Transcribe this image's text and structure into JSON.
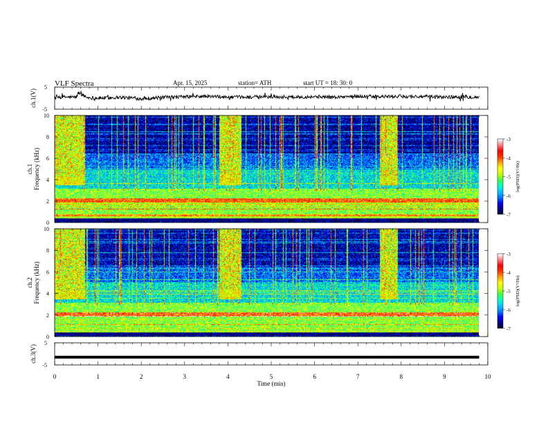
{
  "header": {
    "title": "VLF  Spectra",
    "date": "Apr. 15, 2025",
    "station": "station= ATH",
    "start_ut": "start  UT  =    18: 30: 0"
  },
  "chart_data": [
    {
      "type": "line",
      "id": "ch1_waveform",
      "ylabel": "ch.1(V)",
      "ylim": [
        -5,
        5
      ],
      "yticks": [
        "5",
        "-5"
      ],
      "xlim": [
        0,
        10
      ],
      "series": [
        {
          "x": [
            0,
            0.25,
            0.5,
            0.55,
            0.75,
            1.0,
            1.5,
            2.0,
            2.5,
            3.0,
            3.5,
            4.0,
            4.5,
            5.0,
            5.5,
            6.0,
            6.5,
            7.0,
            7.5,
            8.0,
            8.5,
            9.0,
            9.5,
            9.8
          ],
          "y": [
            0.2,
            0.5,
            0.4,
            2.5,
            0.3,
            0.0,
            0.4,
            -0.2,
            0.3,
            0.6,
            0.8,
            0.4,
            0.5,
            0.6,
            0.5,
            0.7,
            0.4,
            0.9,
            0.6,
            0.8,
            0.7,
            0.5,
            0.6,
            0.4
          ]
        }
      ]
    },
    {
      "type": "heatmap",
      "id": "ch1_spectrogram",
      "ylabel": "ch.1\nFrequency  (kHz)",
      "ylim": [
        0,
        10
      ],
      "yticks": [
        "0",
        "2",
        "4",
        "6",
        "8",
        "10"
      ],
      "xlim": [
        0,
        10
      ],
      "colorbar": {
        "label": "log(PSD)(V²/Hz)",
        "range": [
          -7,
          -3
        ],
        "ticks": [
          "-3",
          "-4",
          "-5",
          "-6",
          "-7"
        ]
      },
      "bright_intervals_min": [
        [
          0.0,
          0.7
        ],
        [
          3.8,
          4.3
        ],
        [
          7.5,
          7.9
        ]
      ],
      "data_end_min": 9.8
    },
    {
      "type": "heatmap",
      "id": "ch2_spectrogram",
      "ylabel": "ch.2\nFrequency  (kHz)",
      "ylim": [
        0,
        10
      ],
      "yticks": [
        "0",
        "2",
        "4",
        "6",
        "8",
        "10"
      ],
      "xlim": [
        0,
        10
      ],
      "colorbar": {
        "label": "log(PSD)(V²/Hz)",
        "range": [
          -7,
          -3
        ],
        "ticks": [
          "-3",
          "-4",
          "-5",
          "-6",
          "-7"
        ]
      },
      "bright_intervals_min": [
        [
          0.0,
          0.7
        ],
        [
          3.8,
          4.3
        ],
        [
          7.5,
          7.9
        ]
      ],
      "data_end_min": 9.8
    },
    {
      "type": "line",
      "id": "ch3_waveform",
      "ylabel": "ch.3(V)",
      "ylim": [
        -5,
        5
      ],
      "yticks": [
        "5",
        "-5"
      ],
      "xlim": [
        0,
        10
      ],
      "series": [
        {
          "x": [
            0,
            9.8
          ],
          "y": [
            -1.5,
            -1.5
          ]
        }
      ]
    }
  ],
  "xaxis": {
    "label": "Time  (min)",
    "ticks": [
      "0",
      "1",
      "2",
      "3",
      "4",
      "5",
      "6",
      "7",
      "8",
      "9",
      "10"
    ]
  },
  "colors": {
    "frame": "#000000",
    "cmap": [
      "#000033",
      "#00008b",
      "#0000ff",
      "#0080ff",
      "#00c8ff",
      "#00ffc0",
      "#40ff40",
      "#c8ff00",
      "#ffff00",
      "#ffa000",
      "#ff3000",
      "#ff0000",
      "#ff8080",
      "#ffffff"
    ]
  }
}
